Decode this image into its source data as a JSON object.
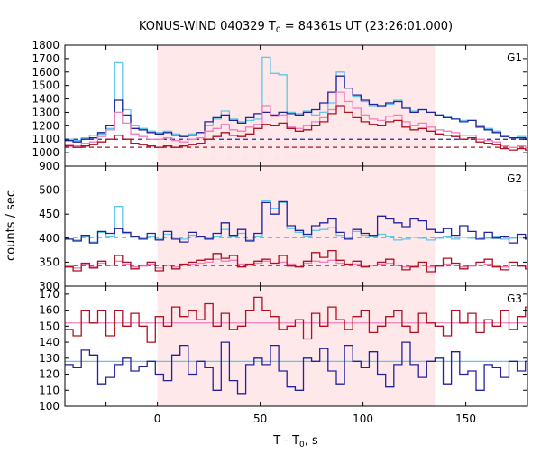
{
  "chart_data": {
    "type": "line",
    "title": "KONUS-WIND 040329 T",
    "title_sub": "0",
    "title_rest": " = 84361s UT (23:26:01.000)",
    "xlabel_main": "T - T",
    "xlabel_sub": "0",
    "xlabel_rest": ", s",
    "ylabel": "counts / sec",
    "xlim": [
      -45,
      180
    ],
    "xticks": [
      0,
      50,
      100,
      150
    ],
    "shaded_interval": [
      0,
      135
    ],
    "colors": {
      "shade": "#ffe8ea",
      "dark_blue": "#2222a0",
      "light_blue": "#5fc7e6",
      "dark_red": "#b01020",
      "pink": "#f080c0"
    },
    "panels": [
      {
        "label": "G1",
        "ylim": [
          900,
          1800
        ],
        "yticks": [
          900,
          1000,
          1100,
          1200,
          1300,
          1400,
          1500,
          1600,
          1700,
          1800
        ],
        "bin_width": 4,
        "x_start": -45,
        "baselines": [
          {
            "name": "",
            "value": 1100,
            "color_key": "dark_blue"
          },
          {
            "name": "",
            "value": 1040,
            "color_key": "dark_red"
          }
        ],
        "series": [
          {
            "name": "",
            "color_key": "light_blue",
            "values": [
              1100,
              1090,
              1110,
              1130,
              1140,
              1180,
              1670,
              1320,
              1200,
              1180,
              1160,
              1150,
              1160,
              1140,
              1120,
              1140,
              1150,
              1200,
              1250,
              1310,
              1250,
              1230,
              1240,
              1250,
              1710,
              1590,
              1580,
              1300,
              1290,
              1310,
              1280,
              1300,
              1370,
              1600,
              1480,
              1420,
              1380,
              1350,
              1340,
              1360,
              1390,
              1340,
              1310,
              1320,
              1300,
              1280,
              1270,
              1250,
              1240,
              1240,
              1200,
              1180,
              1160,
              1120,
              1110,
              1120,
              1110,
              1100,
              1100,
              1110,
              1120,
              1140,
              1150,
              1160,
              1170,
              1180
            ]
          },
          {
            "name": "",
            "color_key": "dark_blue",
            "values": [
              1090,
              1080,
              1100,
              1110,
              1150,
              1200,
              1390,
              1280,
              1180,
              1170,
              1150,
              1140,
              1150,
              1130,
              1120,
              1130,
              1150,
              1230,
              1260,
              1280,
              1240,
              1220,
              1260,
              1290,
              1300,
              1280,
              1300,
              1290,
              1280,
              1300,
              1320,
              1370,
              1450,
              1570,
              1480,
              1430,
              1390,
              1360,
              1350,
              1370,
              1380,
              1330,
              1300,
              1320,
              1300,
              1280,
              1260,
              1250,
              1230,
              1240,
              1190,
              1170,
              1150,
              1120,
              1110,
              1110,
              1100,
              1100,
              1090,
              1100,
              1100,
              1110,
              1120,
              1110,
              1100,
              1120
            ]
          },
          {
            "name": "",
            "color_key": "pink",
            "values": [
              1060,
              1050,
              1070,
              1080,
              1120,
              1170,
              1300,
              1220,
              1140,
              1120,
              1100,
              1100,
              1110,
              1090,
              1080,
              1100,
              1110,
              1160,
              1180,
              1210,
              1170,
              1160,
              1190,
              1210,
              1350,
              1270,
              1280,
              1190,
              1180,
              1200,
              1230,
              1260,
              1320,
              1450,
              1380,
              1330,
              1280,
              1250,
              1240,
              1270,
              1280,
              1230,
              1200,
              1220,
              1190,
              1170,
              1160,
              1150,
              1130,
              1130,
              1100,
              1090,
              1080,
              1050,
              1040,
              1050,
              1040,
              1040,
              1040,
              1050,
              1060,
              1070,
              1080,
              1070,
              1060,
              1080
            ]
          },
          {
            "name": "",
            "color_key": "dark_red",
            "values": [
              1050,
              1040,
              1050,
              1060,
              1080,
              1100,
              1130,
              1100,
              1070,
              1060,
              1050,
              1040,
              1050,
              1040,
              1050,
              1060,
              1070,
              1100,
              1120,
              1150,
              1130,
              1120,
              1140,
              1180,
              1210,
              1200,
              1220,
              1180,
              1160,
              1170,
              1200,
              1230,
              1290,
              1350,
              1300,
              1260,
              1230,
              1210,
              1200,
              1230,
              1240,
              1190,
              1170,
              1180,
              1160,
              1140,
              1130,
              1120,
              1100,
              1110,
              1080,
              1070,
              1060,
              1030,
              1020,
              1030,
              1020,
              1020,
              1020,
              1030,
              1040,
              1050,
              1060,
              1050,
              1040,
              1060
            ]
          }
        ]
      },
      {
        "label": "G2",
        "ylim": [
          300,
          550
        ],
        "yticks": [
          300,
          350,
          400,
          450,
          500
        ],
        "bin_width": 4,
        "x_start": -45,
        "baselines": [
          {
            "name": "",
            "value": 402,
            "color_key": "dark_blue"
          },
          {
            "name": "",
            "value": 343,
            "color_key": "dark_red"
          }
        ],
        "series": [
          {
            "name": "",
            "color_key": "light_blue",
            "values": [
              398,
              396,
              404,
              392,
              412,
              404,
              466,
              410,
              402,
              400,
              404,
              398,
              408,
              402,
              398,
              406,
              402,
              400,
              404,
              418,
              404,
              410,
              396,
              404,
              478,
              462,
              474,
              420,
              412,
              404,
              416,
              418,
              422,
              406,
              400,
              414,
              406,
              404,
              408,
              404,
              396,
              398,
              402,
              400,
              396,
              400,
              404,
              398,
              402,
              400,
              398,
              400,
              404,
              398,
              400,
              402,
              398,
              404,
              400,
              398,
              402,
              396,
              400,
              404,
              398,
              400
            ]
          },
          {
            "name": "",
            "color_key": "dark_blue",
            "values": [
              398,
              394,
              406,
              390,
              414,
              410,
              420,
              412,
              404,
              398,
              410,
              396,
              414,
              398,
              392,
              412,
              404,
              398,
              410,
              432,
              406,
              418,
              394,
              410,
              474,
              450,
              476,
              426,
              416,
              408,
              426,
              432,
              440,
              412,
              398,
              418,
              410,
              406,
              446,
              440,
              432,
              424,
              440,
              436,
              418,
              412,
              420,
              406,
              426,
              414,
              398,
              412,
              400,
              404,
              390,
              408,
              398,
              412,
              402,
              398,
              410,
              390,
              404,
              416,
              398,
              410
            ]
          },
          {
            "name": "",
            "color_key": "pink",
            "values": [
              342,
              338,
              346,
              340,
              348,
              344,
              352,
              346,
              340,
              342,
              346,
              338,
              344,
              340,
              344,
              346,
              348,
              350,
              356,
              352,
              354,
              346,
              344,
              348,
              352,
              348,
              350,
              346,
              344,
              348,
              352,
              350,
              354,
              348,
              344,
              346,
              342,
              344,
              346,
              348,
              344,
              340,
              342,
              344,
              340,
              342,
              346,
              344,
              340,
              342,
              344,
              346,
              342,
              340,
              344,
              342,
              340,
              344,
              346,
              342,
              340,
              344,
              342,
              346,
              344,
              342
            ]
          },
          {
            "name": "",
            "color_key": "dark_red",
            "values": [
              340,
              332,
              348,
              338,
              352,
              344,
              364,
              350,
              336,
              344,
              350,
              332,
              344,
              336,
              346,
              350,
              354,
              356,
              368,
              358,
              364,
              340,
              346,
              352,
              356,
              348,
              364,
              342,
              340,
              352,
              370,
              360,
              374,
              354,
              346,
              352,
              340,
              344,
              350,
              356,
              344,
              334,
              340,
              350,
              330,
              342,
              358,
              348,
              336,
              344,
              350,
              356,
              340,
              334,
              350,
              342,
              336,
              350,
              358,
              344,
              336,
              352,
              340,
              354,
              346,
              342
            ]
          }
        ]
      },
      {
        "label": "G3",
        "ylim": [
          100,
          175
        ],
        "yticks": [
          100,
          110,
          120,
          130,
          140,
          150,
          160,
          170
        ],
        "bin_width": 4,
        "x_start": -45,
        "baselines": [
          {
            "name": "",
            "value": 128,
            "color_key": "light_blue"
          },
          {
            "name": "",
            "value": 152,
            "color_key": "pink"
          }
        ],
        "series": [
          {
            "name": "",
            "color_key": "dark_blue",
            "values": [
              126,
              124,
              135,
              132,
              114,
              118,
              126,
              130,
              122,
              125,
              128,
              120,
              116,
              132,
              138,
              120,
              128,
              124,
              110,
              140,
              116,
              108,
              126,
              130,
              126,
              138,
              122,
              112,
              110,
              130,
              128,
              136,
              122,
              114,
              138,
              128,
              124,
              134,
              120,
              112,
              126,
              140,
              126,
              118,
              128,
              130,
              114,
              134,
              120,
              122,
              110,
              126,
              124,
              118,
              128,
              122,
              128,
              132,
              120,
              114,
              134,
              120,
              128,
              138,
              126,
              130
            ]
          },
          {
            "name": "",
            "color_key": "dark_red",
            "values": [
              148,
              144,
              160,
              152,
              160,
              144,
              160,
              150,
              158,
              150,
              140,
              156,
              150,
              162,
              156,
              160,
              154,
              164,
              150,
              158,
              148,
              150,
              160,
              168,
              160,
              156,
              148,
              150,
              154,
              142,
              158,
              150,
              162,
              154,
              148,
              156,
              160,
              146,
              150,
              156,
              160,
              150,
              146,
              158,
              152,
              150,
              144,
              160,
              152,
              158,
              146,
              154,
              150,
              160,
              148,
              156,
              162,
              148,
              150,
              158,
              154,
              162,
              150,
              156,
              166,
              150
            ]
          }
        ]
      }
    ]
  }
}
